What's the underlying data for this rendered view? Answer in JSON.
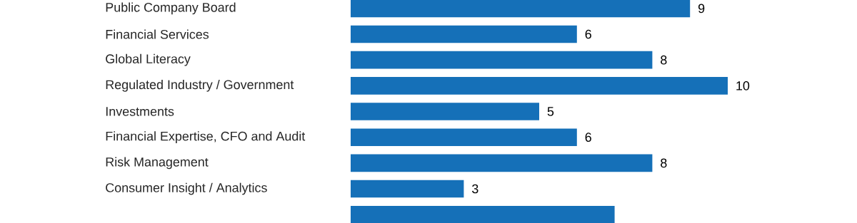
{
  "chart_data": {
    "type": "bar",
    "orientation": "horizontal",
    "categories": [
      "Public Company Board",
      "Financial Services",
      "Global Literacy",
      "Regulated Industry / Government",
      "Investments",
      "Financial Expertise, CFO and Audit",
      "Risk Management",
      "Consumer Insight / Analytics",
      null
    ],
    "values": [
      9,
      6,
      8,
      10,
      5,
      6,
      8,
      3,
      7
    ],
    "value_labels": [
      "9",
      "6",
      "8",
      "10",
      "5",
      "6",
      "8",
      "3",
      null
    ],
    "color": "#1570b8"
  }
}
